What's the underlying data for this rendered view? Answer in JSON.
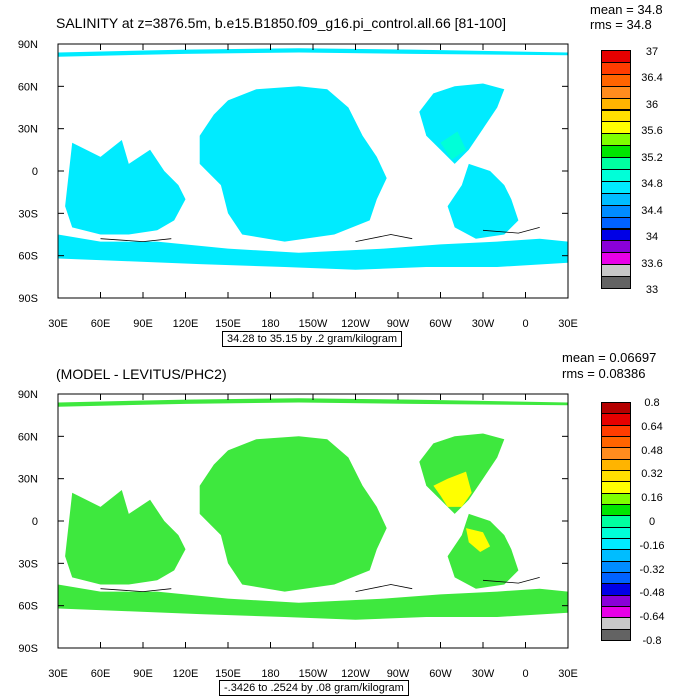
{
  "colors": {
    "levels": [
      "#636363",
      "#c8c8c8",
      "#e800e8",
      "#8a00d8",
      "#0000e6",
      "#0062ff",
      "#008cff",
      "#00bdff",
      "#00ebff",
      "#00ffd8",
      "#00ffa0",
      "#00e600",
      "#7fff00",
      "#ffff00",
      "#ffe000",
      "#ffb400",
      "#ff8c1e",
      "#ff6400",
      "#ff3c00",
      "#e60000",
      "#b40000"
    ],
    "land": "#ffffff",
    "frame": "#000000"
  },
  "panels": [
    {
      "title": "SALINITY at z=3876.5m, b.e15.B1850.f09_g16.pi_control.all.66 [81-100]",
      "mean_label": "mean = 34.8",
      "rms_label": "rms = 34.8",
      "subtitle": "34.28 to 35.15 by .2 gram/kilogram",
      "fill": "#00ebff",
      "alt_fill": "#00ffd8",
      "cbar_labels": [
        "37",
        "36.4",
        "36",
        "35.6",
        "35.2",
        "34.8",
        "34.4",
        "34",
        "33.6",
        "33"
      ]
    },
    {
      "title": "(MODEL - LEVITUS/PHC2)",
      "mean_label": "mean = 0.06697",
      "rms_label": "rms = 0.08386",
      "subtitle": "-.3426 to .2524 by .08 gram/kilogram",
      "fill": "#3ee83e",
      "alt_fill": "#ffff00",
      "cbar_labels": [
        "0.8",
        "0.64",
        "0.48",
        "0.32",
        "0.16",
        "0",
        "-0.16",
        "-0.32",
        "-0.48",
        "-0.64",
        "-0.8"
      ]
    }
  ],
  "axes": {
    "lat_labels": [
      "90N",
      "60N",
      "30N",
      "0",
      "30S",
      "60S",
      "90S"
    ],
    "lon_labels": [
      "30E",
      "60E",
      "90E",
      "120E",
      "150E",
      "180",
      "150W",
      "120W",
      "90W",
      "60W",
      "30W",
      "0",
      "30E"
    ]
  }
}
